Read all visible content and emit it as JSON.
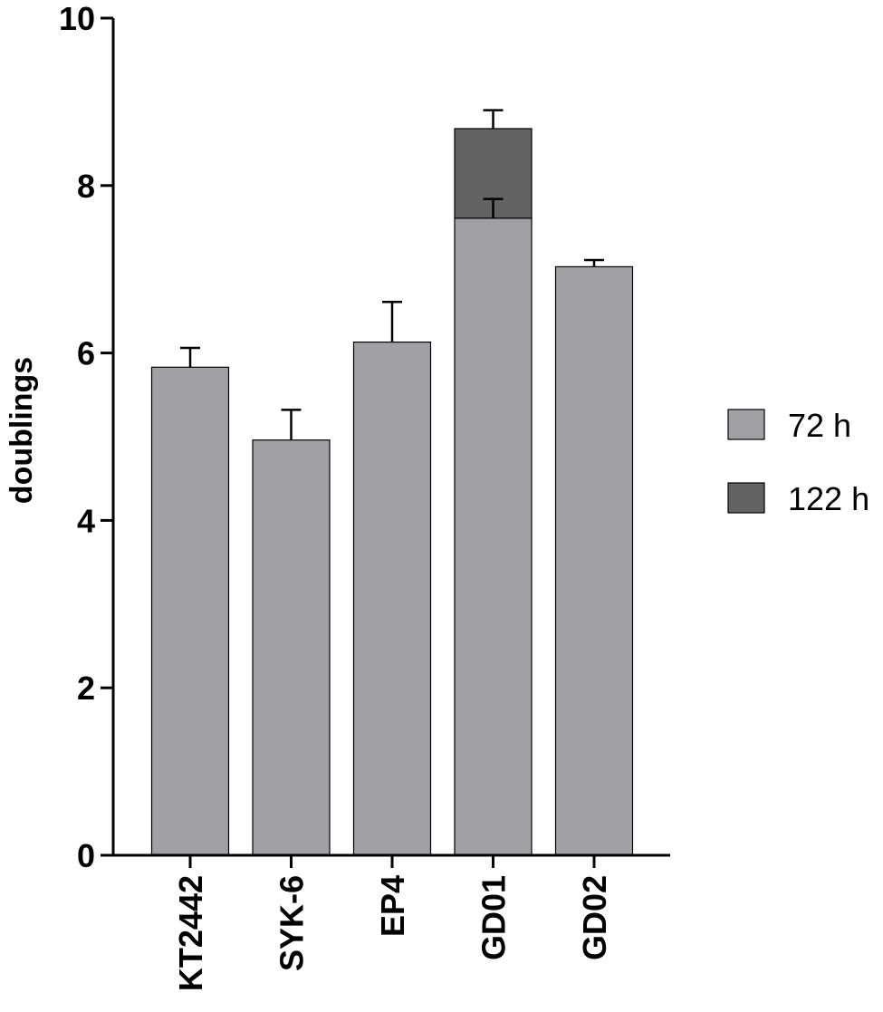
{
  "chart_data": {
    "type": "bar",
    "stacked": true,
    "title": "",
    "xlabel": "",
    "ylabel": "doublings",
    "ylim": [
      0,
      10
    ],
    "yticks": [
      "0",
      "2",
      "4",
      "6",
      "8",
      "10"
    ],
    "categories": [
      "KT2442",
      "SYK-6",
      "EP4",
      "GD01",
      "GD02"
    ],
    "series": [
      {
        "name": "72 h",
        "color": "#a1a0a5",
        "values": [
          5.83,
          4.96,
          6.13,
          7.61,
          7.03
        ],
        "errors": [
          0.23,
          0.36,
          0.48,
          0.23,
          0.08
        ]
      },
      {
        "name": "122 h",
        "color": "#636363",
        "values": [
          null,
          null,
          null,
          1.07,
          null
        ],
        "errors": [
          null,
          null,
          null,
          0.22,
          null
        ]
      }
    ],
    "legend_position": "right",
    "grid": false
  }
}
